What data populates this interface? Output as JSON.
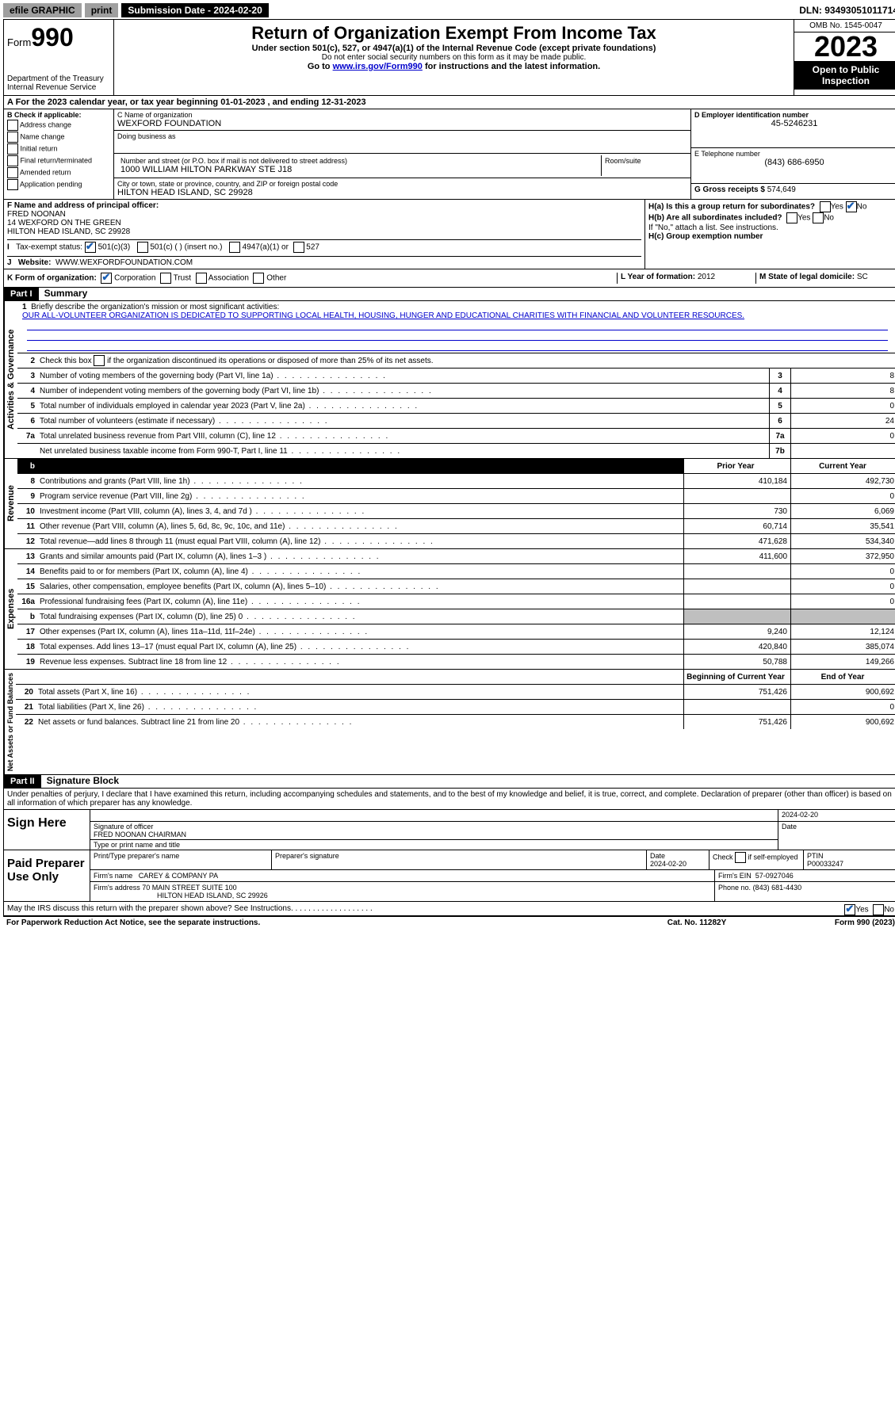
{
  "topbar": {
    "efile": "efile GRAPHIC",
    "print": "print",
    "submission_label": "Submission Date - 2024-02-20",
    "dln": "DLN: 93493051011714"
  },
  "header": {
    "form_label": "Form",
    "form_num": "990",
    "dept": "Department of the Treasury\nInternal Revenue Service",
    "title": "Return of Organization Exempt From Income Tax",
    "sub1": "Under section 501(c), 527, or 4947(a)(1) of the Internal Revenue Code (except private foundations)",
    "sub2": "Do not enter social security numbers on this form as it may be made public.",
    "sub3_pre": "Go to ",
    "sub3_link": "www.irs.gov/Form990",
    "sub3_post": " for instructions and the latest information.",
    "omb": "OMB No. 1545-0047",
    "year": "2023",
    "inspect": "Open to Public Inspection"
  },
  "row_a": "A For the 2023 calendar year, or tax year beginning 01-01-2023   , and ending 12-31-2023",
  "b": {
    "label": "B Check if applicable:",
    "opts": [
      "Address change",
      "Name change",
      "Initial return",
      "Final return/terminated",
      "Amended return",
      "Application pending"
    ]
  },
  "c": {
    "name_label": "C Name of organization",
    "name": "WEXFORD FOUNDATION",
    "dba_label": "Doing business as",
    "street_label": "Number and street (or P.O. box if mail is not delivered to street address)",
    "street": "1000 WILLIAM HILTON PARKWAY STE J18",
    "suite_label": "Room/suite",
    "city_label": "City or town, state or province, country, and ZIP or foreign postal code",
    "city": "HILTON HEAD ISLAND, SC  29928"
  },
  "d": {
    "label": "D Employer identification number",
    "val": "45-5246231"
  },
  "e": {
    "label": "E Telephone number",
    "val": "(843) 686-6950"
  },
  "g": {
    "label": "G Gross receipts $",
    "val": "574,649"
  },
  "f": {
    "label": "F  Name and address of principal officer:",
    "name": "FRED NOONAN",
    "addr1": "14 WEXFORD ON THE GREEN",
    "addr2": "HILTON HEAD ISLAND, SC  29928"
  },
  "h": {
    "a": "H(a)  Is this a group return for subordinates?",
    "b": "H(b)  Are all subordinates included?",
    "note": "If \"No,\" attach a list. See instructions.",
    "c": "H(c)  Group exemption number"
  },
  "i": {
    "label": "Tax-exempt status:",
    "c3": "501(c)(3)",
    "c": "501(c) (  ) (insert no.)",
    "a1": "4947(a)(1) or",
    "s527": "527"
  },
  "j": {
    "label": "Website:",
    "val": "WWW.WEXFORDFOUNDATION.COM"
  },
  "k": {
    "label": "K Form of organization:",
    "corp": "Corporation",
    "trust": "Trust",
    "assoc": "Association",
    "other": "Other"
  },
  "l": {
    "label": "L Year of formation:",
    "val": "2012"
  },
  "m": {
    "label": "M State of legal domicile:",
    "val": "SC"
  },
  "part1": {
    "hdr": "Part I",
    "title": "Summary",
    "q1_label": "Briefly describe the organization's mission or most significant activities:",
    "q1_text": "OUR ALL-VOLUNTEER ORGANIZATION IS DEDICATED TO SUPPORTING LOCAL HEALTH, HOUSING, HUNGER AND EDUCATIONAL CHARITIES WITH FINANCIAL AND VOLUNTEER RESOURCES.",
    "q2": "Check this box      if the organization discontinued its operations or disposed of more than 25% of its net assets.",
    "sections": {
      "activities": "Activities & Governance",
      "revenue": "Revenue",
      "expenses": "Expenses",
      "net": "Net Assets or Fund Balances"
    },
    "lines_ag": [
      {
        "n": "3",
        "t": "Number of voting members of the governing body (Part VI, line 1a)",
        "box": "3",
        "v": "8"
      },
      {
        "n": "4",
        "t": "Number of independent voting members of the governing body (Part VI, line 1b)",
        "box": "4",
        "v": "8"
      },
      {
        "n": "5",
        "t": "Total number of individuals employed in calendar year 2023 (Part V, line 2a)",
        "box": "5",
        "v": "0"
      },
      {
        "n": "6",
        "t": "Total number of volunteers (estimate if necessary)",
        "box": "6",
        "v": "24"
      },
      {
        "n": "7a",
        "t": "Total unrelated business revenue from Part VIII, column (C), line 12",
        "box": "7a",
        "v": "0"
      },
      {
        "n": "",
        "t": "Net unrelated business taxable income from Form 990-T, Part I, line 11",
        "box": "7b",
        "v": ""
      }
    ],
    "col_hdr": {
      "prior": "Prior Year",
      "current": "Current Year"
    },
    "lines_rev": [
      {
        "n": "8",
        "t": "Contributions and grants (Part VIII, line 1h)",
        "p": "410,184",
        "c": "492,730"
      },
      {
        "n": "9",
        "t": "Program service revenue (Part VIII, line 2g)",
        "p": "",
        "c": "0"
      },
      {
        "n": "10",
        "t": "Investment income (Part VIII, column (A), lines 3, 4, and 7d )",
        "p": "730",
        "c": "6,069"
      },
      {
        "n": "11",
        "t": "Other revenue (Part VIII, column (A), lines 5, 6d, 8c, 9c, 10c, and 11e)",
        "p": "60,714",
        "c": "35,541"
      },
      {
        "n": "12",
        "t": "Total revenue—add lines 8 through 11 (must equal Part VIII, column (A), line 12)",
        "p": "471,628",
        "c": "534,340"
      }
    ],
    "lines_exp": [
      {
        "n": "13",
        "t": "Grants and similar amounts paid (Part IX, column (A), lines 1–3 )",
        "p": "411,600",
        "c": "372,950"
      },
      {
        "n": "14",
        "t": "Benefits paid to or for members (Part IX, column (A), line 4)",
        "p": "",
        "c": "0"
      },
      {
        "n": "15",
        "t": "Salaries, other compensation, employee benefits (Part IX, column (A), lines 5–10)",
        "p": "",
        "c": "0"
      },
      {
        "n": "16a",
        "t": "Professional fundraising fees (Part IX, column (A), line 11e)",
        "p": "",
        "c": "0"
      },
      {
        "n": "b",
        "t": "Total fundraising expenses (Part IX, column (D), line 25) 0",
        "p": "grey",
        "c": "grey"
      },
      {
        "n": "17",
        "t": "Other expenses (Part IX, column (A), lines 11a–11d, 11f–24e)",
        "p": "9,240",
        "c": "12,124"
      },
      {
        "n": "18",
        "t": "Total expenses. Add lines 13–17 (must equal Part IX, column (A), line 25)",
        "p": "420,840",
        "c": "385,074"
      },
      {
        "n": "19",
        "t": "Revenue less expenses. Subtract line 18 from line 12",
        "p": "50,788",
        "c": "149,266"
      }
    ],
    "col_hdr2": {
      "begin": "Beginning of Current Year",
      "end": "End of Year"
    },
    "lines_net": [
      {
        "n": "20",
        "t": "Total assets (Part X, line 16)",
        "p": "751,426",
        "c": "900,692"
      },
      {
        "n": "21",
        "t": "Total liabilities (Part X, line 26)",
        "p": "",
        "c": "0"
      },
      {
        "n": "22",
        "t": "Net assets or fund balances. Subtract line 21 from line 20",
        "p": "751,426",
        "c": "900,692"
      }
    ]
  },
  "part2": {
    "hdr": "Part II",
    "title": "Signature Block",
    "decl": "Under penalties of perjury, I declare that I have examined this return, including accompanying schedules and statements, and to the best of my knowledge and belief, it is true, correct, and complete. Declaration of preparer (other than officer) is based on all information of which preparer has any knowledge."
  },
  "sign": {
    "label": "Sign Here",
    "sig_label": "Signature of officer",
    "officer": "FRED NOONAN  CHAIRMAN",
    "type_label": "Type or print name and title",
    "date_label": "Date",
    "date": "2024-02-20"
  },
  "prep": {
    "label": "Paid Preparer Use Only",
    "name_label": "Print/Type preparer's name",
    "sig_label": "Preparer's signature",
    "date_label": "Date",
    "date": "2024-02-20",
    "check_label": "Check      if self-employed",
    "ptin_label": "PTIN",
    "ptin": "P00033247",
    "firm_name_label": "Firm's name",
    "firm_name": "CAREY & COMPANY PA",
    "ein_label": "Firm's EIN",
    "ein": "57-0927046",
    "addr_label": "Firm's address",
    "addr1": "70 MAIN STREET SUITE 100",
    "addr2": "HILTON HEAD ISLAND, SC  29926",
    "phone_label": "Phone no.",
    "phone": "(843) 681-4430"
  },
  "discuss": "May the IRS discuss this return with the preparer shown above? See Instructions.",
  "footer": {
    "left": "For Paperwork Reduction Act Notice, see the separate instructions.",
    "mid": "Cat. No. 11282Y",
    "right": "Form 990 (2023)"
  }
}
